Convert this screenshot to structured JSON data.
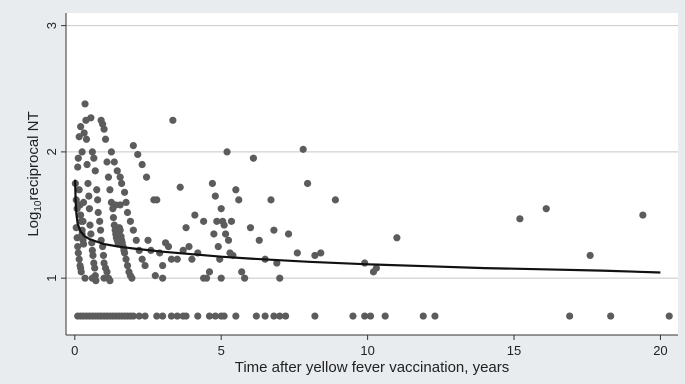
{
  "chart_data": {
    "type": "scatter",
    "title": "",
    "xlabel": "Time after yellow fever vaccination, years",
    "ylabel_parts": [
      "Log",
      "10",
      "reciprocal NT"
    ],
    "xlim": [
      -0.3,
      20.6
    ],
    "ylim": [
      0.55,
      3.1
    ],
    "xticks": [
      0,
      5,
      10,
      15,
      20
    ],
    "yticks": [
      1,
      2,
      3
    ],
    "grid": "horizontal",
    "legend": "none",
    "colors": {
      "points": "#5c5c5c",
      "fit": "#111111",
      "grid": "#c8c8c8",
      "background": "#e9ecee",
      "plot_area": "#ffffff"
    },
    "points": [
      [
        0.02,
        1.75
      ],
      [
        0.05,
        1.62
      ],
      [
        0.08,
        1.55
      ],
      [
        0.1,
        1.88
      ],
      [
        0.12,
        1.95
      ],
      [
        0.15,
        1.7
      ],
      [
        0.18,
        1.58
      ],
      [
        0.2,
        1.5
      ],
      [
        0.22,
        1.45
      ],
      [
        0.25,
        1.38
      ],
      [
        0.28,
        1.3
      ],
      [
        0.3,
        1.27
      ],
      [
        0.05,
        1.4
      ],
      [
        0.08,
        1.32
      ],
      [
        0.1,
        1.25
      ],
      [
        0.12,
        1.2
      ],
      [
        0.15,
        1.15
      ],
      [
        0.18,
        1.1
      ],
      [
        0.2,
        1.08
      ],
      [
        0.22,
        1.05
      ],
      [
        0.25,
        1.35
      ],
      [
        0.28,
        1.45
      ],
      [
        0.3,
        1.6
      ],
      [
        0.32,
        2.15
      ],
      [
        0.35,
        2.38
      ],
      [
        0.38,
        2.25
      ],
      [
        0.4,
        2.1
      ],
      [
        0.42,
        1.9
      ],
      [
        0.45,
        1.75
      ],
      [
        0.48,
        1.65
      ],
      [
        0.5,
        1.55
      ],
      [
        0.52,
        1.42
      ],
      [
        0.55,
        1.35
      ],
      [
        0.58,
        1.28
      ],
      [
        0.6,
        1.22
      ],
      [
        0.62,
        1.18
      ],
      [
        0.65,
        1.12
      ],
      [
        0.68,
        1.08
      ],
      [
        0.7,
        1.02
      ],
      [
        0.72,
        0.98
      ],
      [
        0.15,
        2.12
      ],
      [
        0.2,
        2.2
      ],
      [
        0.25,
        2.0
      ],
      [
        0.55,
        2.27
      ],
      [
        0.6,
        2.0
      ],
      [
        0.65,
        1.95
      ],
      [
        0.7,
        1.85
      ],
      [
        0.75,
        1.7
      ],
      [
        0.78,
        1.62
      ],
      [
        0.8,
        1.52
      ],
      [
        0.85,
        1.45
      ],
      [
        0.88,
        1.38
      ],
      [
        0.9,
        1.3
      ],
      [
        0.95,
        1.25
      ],
      [
        0.98,
        1.18
      ],
      [
        1.0,
        1.12
      ],
      [
        1.05,
        1.08
      ],
      [
        1.1,
        1.05
      ],
      [
        1.15,
        1.0
      ],
      [
        1.2,
        0.98
      ],
      [
        0.9,
        2.25
      ],
      [
        0.95,
        2.22
      ],
      [
        1.0,
        2.18
      ],
      [
        1.05,
        2.1
      ],
      [
        1.1,
        1.92
      ],
      [
        1.15,
        1.8
      ],
      [
        1.2,
        1.7
      ],
      [
        1.25,
        1.6
      ],
      [
        1.3,
        1.55
      ],
      [
        1.32,
        1.48
      ],
      [
        1.35,
        1.42
      ],
      [
        1.38,
        1.38
      ],
      [
        1.4,
        1.35
      ],
      [
        1.42,
        1.32
      ],
      [
        1.45,
        1.3
      ],
      [
        1.48,
        1.28
      ],
      [
        1.5,
        1.35
      ],
      [
        1.52,
        1.4
      ],
      [
        1.55,
        1.38
      ],
      [
        1.58,
        1.33
      ],
      [
        1.6,
        1.3
      ],
      [
        1.62,
        1.28
      ],
      [
        1.65,
        1.25
      ],
      [
        1.68,
        1.22
      ],
      [
        1.7,
        1.2
      ],
      [
        1.75,
        1.15
      ],
      [
        1.8,
        1.1
      ],
      [
        1.85,
        1.05
      ],
      [
        1.9,
        1.02
      ],
      [
        1.95,
        1.0
      ],
      [
        1.25,
        2.0
      ],
      [
        1.35,
        1.92
      ],
      [
        1.45,
        1.85
      ],
      [
        1.55,
        1.8
      ],
      [
        1.6,
        1.75
      ],
      [
        1.7,
        1.68
      ],
      [
        1.75,
        1.6
      ],
      [
        1.8,
        1.52
      ],
      [
        1.9,
        1.45
      ],
      [
        2.0,
        1.38
      ],
      [
        2.1,
        1.3
      ],
      [
        2.2,
        1.22
      ],
      [
        2.3,
        1.15
      ],
      [
        2.4,
        1.1
      ],
      [
        2.0,
        2.05
      ],
      [
        2.15,
        1.98
      ],
      [
        2.3,
        1.9
      ],
      [
        2.45,
        1.8
      ],
      [
        1.4,
        1.58
      ],
      [
        1.55,
        1.58
      ],
      [
        2.5,
        1.3
      ],
      [
        2.6,
        1.22
      ],
      [
        2.7,
        1.62
      ],
      [
        2.8,
        1.62
      ],
      [
        2.9,
        1.2
      ],
      [
        3.0,
        1.1
      ],
      [
        3.1,
        1.28
      ],
      [
        3.2,
        1.25
      ],
      [
        3.3,
        1.15
      ],
      [
        3.35,
        2.25
      ],
      [
        3.5,
        1.15
      ],
      [
        3.6,
        1.72
      ],
      [
        3.7,
        1.22
      ],
      [
        3.8,
        1.4
      ],
      [
        3.9,
        1.25
      ],
      [
        4.0,
        1.15
      ],
      [
        4.1,
        1.5
      ],
      [
        4.2,
        1.2
      ],
      [
        4.4,
        1.45
      ],
      [
        4.5,
        1.0
      ],
      [
        4.6,
        1.05
      ],
      [
        4.7,
        1.75
      ],
      [
        4.75,
        1.35
      ],
      [
        4.8,
        1.65
      ],
      [
        4.85,
        1.45
      ],
      [
        4.9,
        1.25
      ],
      [
        4.95,
        1.15
      ],
      [
        5.0,
        1.55
      ],
      [
        5.05,
        1.45
      ],
      [
        5.1,
        1.42
      ],
      [
        5.15,
        1.35
      ],
      [
        5.2,
        2.0
      ],
      [
        5.25,
        1.3
      ],
      [
        5.3,
        1.2
      ],
      [
        5.35,
        1.45
      ],
      [
        5.4,
        1.18
      ],
      [
        5.5,
        1.7
      ],
      [
        5.6,
        1.62
      ],
      [
        5.7,
        1.05
      ],
      [
        5.8,
        1.0
      ],
      [
        6.0,
        1.4
      ],
      [
        6.1,
        1.95
      ],
      [
        6.3,
        1.3
      ],
      [
        6.5,
        1.15
      ],
      [
        6.7,
        1.62
      ],
      [
        6.8,
        1.38
      ],
      [
        6.9,
        1.12
      ],
      [
        7.0,
        1.0
      ],
      [
        7.3,
        1.35
      ],
      [
        7.6,
        1.2
      ],
      [
        7.8,
        2.02
      ],
      [
        7.95,
        1.75
      ],
      [
        8.2,
        1.18
      ],
      [
        8.4,
        1.2
      ],
      [
        8.9,
        1.62
      ],
      [
        9.9,
        1.12
      ],
      [
        10.2,
        1.05
      ],
      [
        10.3,
        1.08
      ],
      [
        11.0,
        1.32
      ],
      [
        15.2,
        1.47
      ],
      [
        16.1,
        1.55
      ],
      [
        17.6,
        1.18
      ],
      [
        19.4,
        1.5
      ],
      [
        4.4,
        1.0
      ],
      [
        2.75,
        1.02
      ],
      [
        1.0,
        1.0
      ],
      [
        0.35,
        1.0
      ],
      [
        0.6,
        1.0
      ],
      [
        3.0,
        1.0
      ],
      [
        5.0,
        1.0
      ],
      [
        0.1,
        0.7
      ],
      [
        0.2,
        0.7
      ],
      [
        0.3,
        0.7
      ],
      [
        0.4,
        0.7
      ],
      [
        0.5,
        0.7
      ],
      [
        0.6,
        0.7
      ],
      [
        0.7,
        0.7
      ],
      [
        0.8,
        0.7
      ],
      [
        0.9,
        0.7
      ],
      [
        1.0,
        0.7
      ],
      [
        1.1,
        0.7
      ],
      [
        1.2,
        0.7
      ],
      [
        1.3,
        0.7
      ],
      [
        1.4,
        0.7
      ],
      [
        1.5,
        0.7
      ],
      [
        1.6,
        0.7
      ],
      [
        1.7,
        0.7
      ],
      [
        1.8,
        0.7
      ],
      [
        1.9,
        0.7
      ],
      [
        2.0,
        0.7
      ],
      [
        2.2,
        0.7
      ],
      [
        2.4,
        0.7
      ],
      [
        2.8,
        0.7
      ],
      [
        3.0,
        0.7
      ],
      [
        3.3,
        0.7
      ],
      [
        3.5,
        0.7
      ],
      [
        3.7,
        0.7
      ],
      [
        3.8,
        0.7
      ],
      [
        4.2,
        0.7
      ],
      [
        4.6,
        0.7
      ],
      [
        4.8,
        0.7
      ],
      [
        5.0,
        0.7
      ],
      [
        5.1,
        0.7
      ],
      [
        5.5,
        0.7
      ],
      [
        6.2,
        0.7
      ],
      [
        6.5,
        0.7
      ],
      [
        6.8,
        0.7
      ],
      [
        7.0,
        0.7
      ],
      [
        7.2,
        0.7
      ],
      [
        8.2,
        0.7
      ],
      [
        9.5,
        0.7
      ],
      [
        9.9,
        0.7
      ],
      [
        10.1,
        0.7
      ],
      [
        10.6,
        0.7
      ],
      [
        11.9,
        0.7
      ],
      [
        12.3,
        0.7
      ],
      [
        16.9,
        0.7
      ],
      [
        18.3,
        0.7
      ],
      [
        20.3,
        0.7
      ]
    ],
    "fit_curve": [
      [
        0.01,
        1.78
      ],
      [
        0.03,
        1.6
      ],
      [
        0.06,
        1.5
      ],
      [
        0.1,
        1.43
      ],
      [
        0.2,
        1.37
      ],
      [
        0.35,
        1.33
      ],
      [
        0.5,
        1.31
      ],
      [
        0.75,
        1.29
      ],
      [
        1.0,
        1.27
      ],
      [
        1.5,
        1.25
      ],
      [
        2.0,
        1.235
      ],
      [
        3.0,
        1.21
      ],
      [
        4.0,
        1.19
      ],
      [
        5.0,
        1.17
      ],
      [
        6.0,
        1.155
      ],
      [
        8.0,
        1.13
      ],
      [
        10.0,
        1.11
      ],
      [
        12.0,
        1.095
      ],
      [
        14.0,
        1.08
      ],
      [
        16.0,
        1.07
      ],
      [
        18.0,
        1.06
      ],
      [
        20.0,
        1.045
      ]
    ]
  }
}
